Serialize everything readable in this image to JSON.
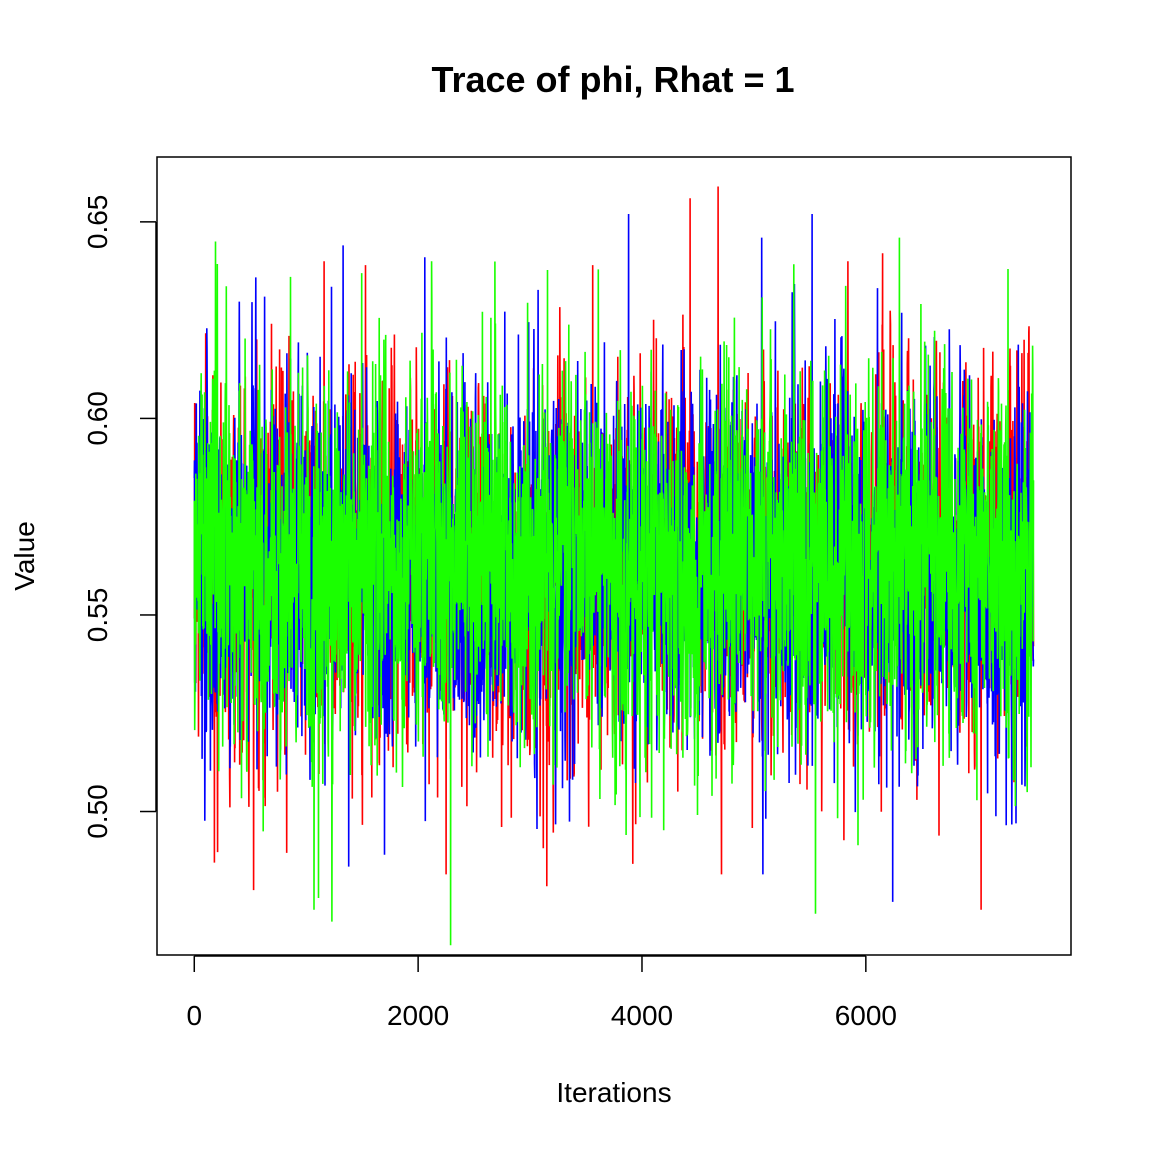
{
  "chart_data": {
    "type": "line",
    "title": "Trace of phi, Rhat = 1",
    "xlabel": "Iterations",
    "ylabel": "Value",
    "xlim": [
      -333,
      7833
    ],
    "ylim": [
      0.4635,
      0.6665
    ],
    "x_ticks": [
      0,
      2000,
      4000,
      6000
    ],
    "x_tick_labels": [
      "0",
      "2000",
      "4000",
      "6000"
    ],
    "y_ticks": [
      0.5,
      0.55,
      0.6,
      0.65
    ],
    "y_tick_labels": [
      "0.50",
      "0.55",
      "0.60",
      "0.65"
    ],
    "grid": false,
    "legend": "none",
    "iterations": 7500,
    "series": [
      {
        "color": "#FF0000",
        "mean": 0.563,
        "sd": 0.0225,
        "min": 0.475,
        "max": 0.659,
        "extremes": [
          {
            "x": 4680,
            "y": 0.659
          },
          {
            "x": 4430,
            "y": 0.656
          },
          {
            "x": 6150,
            "y": 0.642
          },
          {
            "x": 1160,
            "y": 0.64
          },
          {
            "x": 1530,
            "y": 0.639
          },
          {
            "x": 3560,
            "y": 0.639
          },
          {
            "x": 5840,
            "y": 0.64
          },
          {
            "x": 530,
            "y": 0.48
          },
          {
            "x": 7030,
            "y": 0.475
          },
          {
            "x": 3150,
            "y": 0.481
          },
          {
            "x": 4710,
            "y": 0.484
          },
          {
            "x": 2250,
            "y": 0.484
          },
          {
            "x": 180,
            "y": 0.487
          }
        ]
      },
      {
        "color": "#0000FF",
        "mean": 0.563,
        "sd": 0.0225,
        "min": 0.477,
        "max": 0.652,
        "extremes": [
          {
            "x": 3880,
            "y": 0.652
          },
          {
            "x": 5520,
            "y": 0.652
          },
          {
            "x": 5070,
            "y": 0.646
          },
          {
            "x": 1330,
            "y": 0.644
          },
          {
            "x": 2060,
            "y": 0.641
          },
          {
            "x": 6240,
            "y": 0.477
          },
          {
            "x": 1380,
            "y": 0.486
          },
          {
            "x": 1700,
            "y": 0.489
          },
          {
            "x": 5080,
            "y": 0.484
          }
        ]
      },
      {
        "color": "#1AFF00",
        "mean": 0.563,
        "sd": 0.0225,
        "min": 0.466,
        "max": 0.646,
        "extremes": [
          {
            "x": 2290,
            "y": 0.466
          },
          {
            "x": 1230,
            "y": 0.472
          },
          {
            "x": 1070,
            "y": 0.475
          },
          {
            "x": 5550,
            "y": 0.474
          },
          {
            "x": 1110,
            "y": 0.478
          },
          {
            "x": 6300,
            "y": 0.646
          },
          {
            "x": 190,
            "y": 0.645
          },
          {
            "x": 2120,
            "y": 0.64
          },
          {
            "x": 7270,
            "y": 0.638
          },
          {
            "x": 860,
            "y": 0.636
          }
        ]
      }
    ]
  }
}
